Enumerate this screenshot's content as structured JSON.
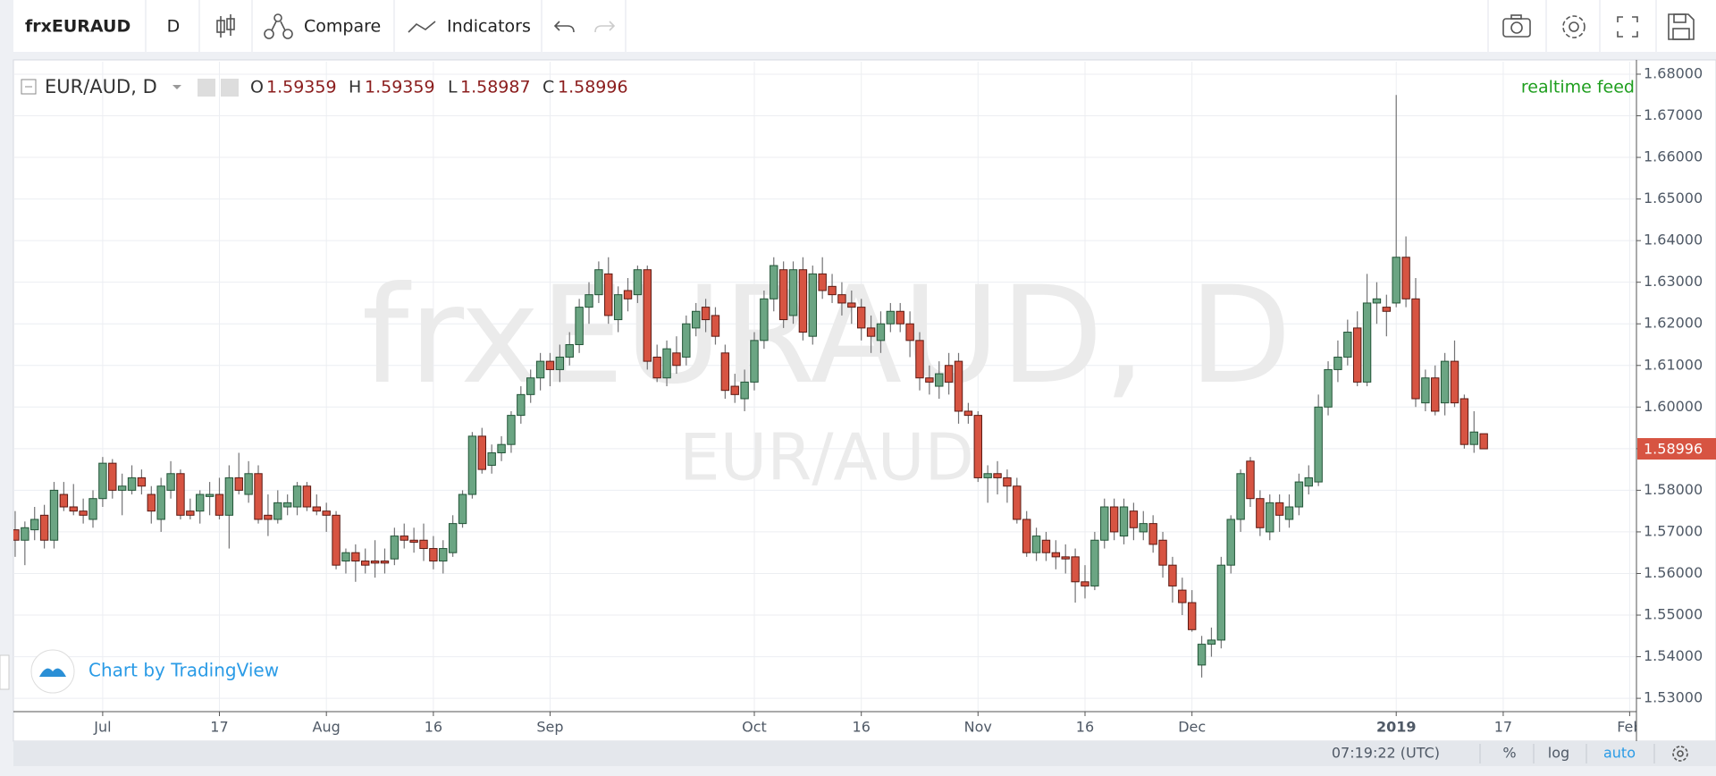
{
  "toolbar": {
    "symbol": "frxEURAUD",
    "interval": "D",
    "compare": "Compare",
    "indicators": "Indicators"
  },
  "legend": {
    "title": "EUR/AUD, D",
    "open_label": "O",
    "high_label": "H",
    "low_label": "L",
    "close_label": "C"
  },
  "watermark": {
    "symbol": "frxEURAUD, D",
    "pair": "EUR/AUD"
  },
  "feed": "realtime feed",
  "branding": "Chart by TradingView",
  "status": {
    "time": "07:19:22 (UTC)",
    "percent": "%",
    "log": "log",
    "auto": "auto"
  },
  "chart_data": {
    "type": "candlestick",
    "grid": true,
    "up_color": "#6ba583",
    "down_color": "#d75442",
    "up_border": "#225437",
    "down_border": "#5b1a13",
    "wick_color": "#737375",
    "ylim": [
      1.5268,
      1.683
    ],
    "yticks": [
      {
        "value": 1.53,
        "label": "1.53000"
      },
      {
        "value": 1.54,
        "label": "1.54000"
      },
      {
        "value": 1.55,
        "label": "1.55000"
      },
      {
        "value": 1.56,
        "label": "1.56000"
      },
      {
        "value": 1.57,
        "label": "1.57000"
      },
      {
        "value": 1.58,
        "label": "1.58000"
      },
      {
        "value": 1.59,
        "label": "1.59000"
      },
      {
        "value": 1.6,
        "label": "1.60000"
      },
      {
        "value": 1.61,
        "label": "1.61000"
      },
      {
        "value": 1.62,
        "label": "1.62000"
      },
      {
        "value": 1.63,
        "label": "1.63000"
      },
      {
        "value": 1.64,
        "label": "1.64000"
      },
      {
        "value": 1.65,
        "label": "1.65000"
      },
      {
        "value": 1.66,
        "label": "1.66000"
      },
      {
        "value": 1.67,
        "label": "1.67000"
      },
      {
        "value": 1.68,
        "label": "1.68000"
      }
    ],
    "xlim": [
      -0.18,
      166.7
    ],
    "xticks": [
      {
        "value": 9,
        "label": "Jul"
      },
      {
        "value": 21,
        "label": "17"
      },
      {
        "value": 32,
        "label": "Aug"
      },
      {
        "value": 43,
        "label": "16"
      },
      {
        "value": 55,
        "label": "Sep"
      },
      {
        "value": 76,
        "label": "Oct"
      },
      {
        "value": 87,
        "label": "16"
      },
      {
        "value": 99,
        "label": "Nov"
      },
      {
        "value": 110,
        "label": "16"
      },
      {
        "value": 121,
        "label": "Dec"
      },
      {
        "value": 142,
        "label": "2019"
      },
      {
        "value": 153,
        "label": "17"
      },
      {
        "value": 166,
        "label": "Feb"
      }
    ],
    "candles": [
      {
        "open": 1.5705,
        "high": 1.575,
        "low": 1.564,
        "close": 1.568
      },
      {
        "open": 1.568,
        "high": 1.5725,
        "low": 1.562,
        "close": 1.571
      },
      {
        "open": 1.5705,
        "high": 1.576,
        "low": 1.568,
        "close": 1.573
      },
      {
        "open": 1.574,
        "high": 1.5765,
        "low": 1.566,
        "close": 1.568
      },
      {
        "open": 1.568,
        "high": 1.582,
        "low": 1.566,
        "close": 1.58
      },
      {
        "open": 1.579,
        "high": 1.582,
        "low": 1.575,
        "close": 1.576
      },
      {
        "open": 1.576,
        "high": 1.5815,
        "low": 1.574,
        "close": 1.575
      },
      {
        "open": 1.575,
        "high": 1.578,
        "low": 1.572,
        "close": 1.574
      },
      {
        "open": 1.573,
        "high": 1.58,
        "low": 1.571,
        "close": 1.578
      },
      {
        "open": 1.578,
        "high": 1.588,
        "low": 1.576,
        "close": 1.5865
      },
      {
        "open": 1.5865,
        "high": 1.5875,
        "low": 1.578,
        "close": 1.58
      },
      {
        "open": 1.58,
        "high": 1.584,
        "low": 1.574,
        "close": 1.581
      },
      {
        "open": 1.58,
        "high": 1.586,
        "low": 1.579,
        "close": 1.583
      },
      {
        "open": 1.583,
        "high": 1.585,
        "low": 1.579,
        "close": 1.581
      },
      {
        "open": 1.579,
        "high": 1.581,
        "low": 1.572,
        "close": 1.575
      },
      {
        "open": 1.573,
        "high": 1.583,
        "low": 1.57,
        "close": 1.581
      },
      {
        "open": 1.58,
        "high": 1.587,
        "low": 1.578,
        "close": 1.584
      },
      {
        "open": 1.584,
        "high": 1.585,
        "low": 1.573,
        "close": 1.574
      },
      {
        "open": 1.575,
        "high": 1.578,
        "low": 1.573,
        "close": 1.574
      },
      {
        "open": 1.575,
        "high": 1.58,
        "low": 1.572,
        "close": 1.579
      },
      {
        "open": 1.5785,
        "high": 1.582,
        "low": 1.574,
        "close": 1.579
      },
      {
        "open": 1.579,
        "high": 1.583,
        "low": 1.573,
        "close": 1.574
      },
      {
        "open": 1.574,
        "high": 1.586,
        "low": 1.566,
        "close": 1.583
      },
      {
        "open": 1.583,
        "high": 1.589,
        "low": 1.579,
        "close": 1.58
      },
      {
        "open": 1.579,
        "high": 1.587,
        "low": 1.577,
        "close": 1.584
      },
      {
        "open": 1.584,
        "high": 1.586,
        "low": 1.572,
        "close": 1.573
      },
      {
        "open": 1.574,
        "high": 1.579,
        "low": 1.569,
        "close": 1.573
      },
      {
        "open": 1.573,
        "high": 1.58,
        "low": 1.572,
        "close": 1.577
      },
      {
        "open": 1.576,
        "high": 1.579,
        "low": 1.574,
        "close": 1.577
      },
      {
        "open": 1.576,
        "high": 1.582,
        "low": 1.574,
        "close": 1.581
      },
      {
        "open": 1.581,
        "high": 1.582,
        "low": 1.575,
        "close": 1.576
      },
      {
        "open": 1.576,
        "high": 1.579,
        "low": 1.574,
        "close": 1.575
      },
      {
        "open": 1.575,
        "high": 1.577,
        "low": 1.57,
        "close": 1.574
      },
      {
        "open": 1.574,
        "high": 1.575,
        "low": 1.561,
        "close": 1.562
      },
      {
        "open": 1.563,
        "high": 1.566,
        "low": 1.56,
        "close": 1.565
      },
      {
        "open": 1.565,
        "high": 1.567,
        "low": 1.558,
        "close": 1.563
      },
      {
        "open": 1.563,
        "high": 1.566,
        "low": 1.56,
        "close": 1.562
      },
      {
        "open": 1.563,
        "high": 1.568,
        "low": 1.559,
        "close": 1.5625
      },
      {
        "open": 1.563,
        "high": 1.566,
        "low": 1.56,
        "close": 1.5625
      },
      {
        "open": 1.5635,
        "high": 1.571,
        "low": 1.562,
        "close": 1.569
      },
      {
        "open": 1.569,
        "high": 1.572,
        "low": 1.566,
        "close": 1.568
      },
      {
        "open": 1.568,
        "high": 1.571,
        "low": 1.565,
        "close": 1.5675
      },
      {
        "open": 1.568,
        "high": 1.572,
        "low": 1.563,
        "close": 1.566
      },
      {
        "open": 1.566,
        "high": 1.569,
        "low": 1.561,
        "close": 1.563
      },
      {
        "open": 1.563,
        "high": 1.568,
        "low": 1.56,
        "close": 1.566
      },
      {
        "open": 1.565,
        "high": 1.574,
        "low": 1.564,
        "close": 1.572
      },
      {
        "open": 1.572,
        "high": 1.58,
        "low": 1.571,
        "close": 1.579
      },
      {
        "open": 1.579,
        "high": 1.594,
        "low": 1.578,
        "close": 1.593
      },
      {
        "open": 1.593,
        "high": 1.595,
        "low": 1.584,
        "close": 1.585
      },
      {
        "open": 1.586,
        "high": 1.591,
        "low": 1.584,
        "close": 1.589
      },
      {
        "open": 1.589,
        "high": 1.593,
        "low": 1.587,
        "close": 1.591
      },
      {
        "open": 1.591,
        "high": 1.599,
        "low": 1.589,
        "close": 1.598
      },
      {
        "open": 1.598,
        "high": 1.605,
        "low": 1.596,
        "close": 1.603
      },
      {
        "open": 1.603,
        "high": 1.609,
        "low": 1.601,
        "close": 1.607
      },
      {
        "open": 1.607,
        "high": 1.613,
        "low": 1.604,
        "close": 1.611
      },
      {
        "open": 1.611,
        "high": 1.613,
        "low": 1.605,
        "close": 1.609
      },
      {
        "open": 1.609,
        "high": 1.615,
        "low": 1.606,
        "close": 1.612
      },
      {
        "open": 1.612,
        "high": 1.618,
        "low": 1.61,
        "close": 1.615
      },
      {
        "open": 1.615,
        "high": 1.626,
        "low": 1.613,
        "close": 1.624
      },
      {
        "open": 1.624,
        "high": 1.63,
        "low": 1.62,
        "close": 1.627
      },
      {
        "open": 1.627,
        "high": 1.635,
        "low": 1.625,
        "close": 1.633
      },
      {
        "open": 1.632,
        "high": 1.636,
        "low": 1.62,
        "close": 1.622
      },
      {
        "open": 1.621,
        "high": 1.629,
        "low": 1.618,
        "close": 1.627
      },
      {
        "open": 1.628,
        "high": 1.631,
        "low": 1.623,
        "close": 1.626
      },
      {
        "open": 1.627,
        "high": 1.634,
        "low": 1.625,
        "close": 1.633
      },
      {
        "open": 1.633,
        "high": 1.634,
        "low": 1.609,
        "close": 1.611
      },
      {
        "open": 1.612,
        "high": 1.615,
        "low": 1.606,
        "close": 1.607
      },
      {
        "open": 1.607,
        "high": 1.616,
        "low": 1.605,
        "close": 1.614
      },
      {
        "open": 1.613,
        "high": 1.617,
        "low": 1.608,
        "close": 1.61
      },
      {
        "open": 1.612,
        "high": 1.622,
        "low": 1.61,
        "close": 1.62
      },
      {
        "open": 1.619,
        "high": 1.625,
        "low": 1.617,
        "close": 1.623
      },
      {
        "open": 1.624,
        "high": 1.626,
        "low": 1.618,
        "close": 1.621
      },
      {
        "open": 1.622,
        "high": 1.624,
        "low": 1.615,
        "close": 1.617
      },
      {
        "open": 1.613,
        "high": 1.615,
        "low": 1.602,
        "close": 1.604
      },
      {
        "open": 1.605,
        "high": 1.608,
        "low": 1.601,
        "close": 1.603
      },
      {
        "open": 1.602,
        "high": 1.609,
        "low": 1.599,
        "close": 1.606
      },
      {
        "open": 1.606,
        "high": 1.618,
        "low": 1.604,
        "close": 1.616
      },
      {
        "open": 1.616,
        "high": 1.628,
        "low": 1.614,
        "close": 1.626
      },
      {
        "open": 1.626,
        "high": 1.636,
        "low": 1.623,
        "close": 1.634
      },
      {
        "open": 1.633,
        "high": 1.635,
        "low": 1.619,
        "close": 1.621
      },
      {
        "open": 1.622,
        "high": 1.635,
        "low": 1.62,
        "close": 1.633
      },
      {
        "open": 1.633,
        "high": 1.636,
        "low": 1.616,
        "close": 1.618
      },
      {
        "open": 1.617,
        "high": 1.634,
        "low": 1.615,
        "close": 1.632
      },
      {
        "open": 1.632,
        "high": 1.636,
        "low": 1.626,
        "close": 1.628
      },
      {
        "open": 1.629,
        "high": 1.632,
        "low": 1.625,
        "close": 1.627
      },
      {
        "open": 1.627,
        "high": 1.63,
        "low": 1.622,
        "close": 1.625
      },
      {
        "open": 1.625,
        "high": 1.628,
        "low": 1.62,
        "close": 1.624
      },
      {
        "open": 1.624,
        "high": 1.626,
        "low": 1.616,
        "close": 1.619
      },
      {
        "open": 1.619,
        "high": 1.622,
        "low": 1.613,
        "close": 1.617
      },
      {
        "open": 1.616,
        "high": 1.623,
        "low": 1.613,
        "close": 1.62
      },
      {
        "open": 1.62,
        "high": 1.625,
        "low": 1.618,
        "close": 1.623
      },
      {
        "open": 1.623,
        "high": 1.625,
        "low": 1.618,
        "close": 1.62
      },
      {
        "open": 1.62,
        "high": 1.623,
        "low": 1.612,
        "close": 1.616
      },
      {
        "open": 1.616,
        "high": 1.618,
        "low": 1.604,
        "close": 1.607
      },
      {
        "open": 1.607,
        "high": 1.61,
        "low": 1.603,
        "close": 1.606
      },
      {
        "open": 1.605,
        "high": 1.611,
        "low": 1.602,
        "close": 1.608
      },
      {
        "open": 1.61,
        "high": 1.613,
        "low": 1.603,
        "close": 1.606
      },
      {
        "open": 1.611,
        "high": 1.613,
        "low": 1.596,
        "close": 1.599
      },
      {
        "open": 1.599,
        "high": 1.601,
        "low": 1.596,
        "close": 1.598
      },
      {
        "open": 1.598,
        "high": 1.599,
        "low": 1.582,
        "close": 1.583
      },
      {
        "open": 1.583,
        "high": 1.586,
        "low": 1.577,
        "close": 1.584
      },
      {
        "open": 1.584,
        "high": 1.587,
        "low": 1.579,
        "close": 1.583
      },
      {
        "open": 1.583,
        "high": 1.585,
        "low": 1.577,
        "close": 1.581
      },
      {
        "open": 1.581,
        "high": 1.583,
        "low": 1.572,
        "close": 1.573
      },
      {
        "open": 1.573,
        "high": 1.575,
        "low": 1.564,
        "close": 1.565
      },
      {
        "open": 1.565,
        "high": 1.571,
        "low": 1.563,
        "close": 1.569
      },
      {
        "open": 1.568,
        "high": 1.57,
        "low": 1.563,
        "close": 1.565
      },
      {
        "open": 1.565,
        "high": 1.568,
        "low": 1.561,
        "close": 1.564
      },
      {
        "open": 1.564,
        "high": 1.567,
        "low": 1.56,
        "close": 1.5635
      },
      {
        "open": 1.564,
        "high": 1.566,
        "low": 1.553,
        "close": 1.558
      },
      {
        "open": 1.558,
        "high": 1.562,
        "low": 1.554,
        "close": 1.557
      },
      {
        "open": 1.557,
        "high": 1.57,
        "low": 1.556,
        "close": 1.568
      },
      {
        "open": 1.568,
        "high": 1.578,
        "low": 1.566,
        "close": 1.576
      },
      {
        "open": 1.576,
        "high": 1.578,
        "low": 1.568,
        "close": 1.57
      },
      {
        "open": 1.569,
        "high": 1.578,
        "low": 1.567,
        "close": 1.576
      },
      {
        "open": 1.575,
        "high": 1.577,
        "low": 1.568,
        "close": 1.571
      },
      {
        "open": 1.57,
        "high": 1.575,
        "low": 1.568,
        "close": 1.572
      },
      {
        "open": 1.572,
        "high": 1.574,
        "low": 1.565,
        "close": 1.567
      },
      {
        "open": 1.568,
        "high": 1.57,
        "low": 1.559,
        "close": 1.562
      },
      {
        "open": 1.562,
        "high": 1.564,
        "low": 1.553,
        "close": 1.557
      },
      {
        "open": 1.556,
        "high": 1.559,
        "low": 1.55,
        "close": 1.553
      },
      {
        "open": 1.553,
        "high": 1.556,
        "low": 1.546,
        "close": 1.5465
      },
      {
        "open": 1.538,
        "high": 1.545,
        "low": 1.535,
        "close": 1.543
      },
      {
        "open": 1.543,
        "high": 1.547,
        "low": 1.54,
        "close": 1.544
      },
      {
        "open": 1.544,
        "high": 1.564,
        "low": 1.542,
        "close": 1.562
      },
      {
        "open": 1.562,
        "high": 1.574,
        "low": 1.56,
        "close": 1.573
      },
      {
        "open": 1.573,
        "high": 1.585,
        "low": 1.57,
        "close": 1.584
      },
      {
        "open": 1.587,
        "high": 1.588,
        "low": 1.576,
        "close": 1.578
      },
      {
        "open": 1.578,
        "high": 1.58,
        "low": 1.569,
        "close": 1.571
      },
      {
        "open": 1.57,
        "high": 1.579,
        "low": 1.568,
        "close": 1.577
      },
      {
        "open": 1.577,
        "high": 1.579,
        "low": 1.57,
        "close": 1.574
      },
      {
        "open": 1.573,
        "high": 1.579,
        "low": 1.571,
        "close": 1.576
      },
      {
        "open": 1.576,
        "high": 1.584,
        "low": 1.574,
        "close": 1.582
      },
      {
        "open": 1.581,
        "high": 1.586,
        "low": 1.579,
        "close": 1.583
      },
      {
        "open": 1.582,
        "high": 1.603,
        "low": 1.581,
        "close": 1.6
      },
      {
        "open": 1.6,
        "high": 1.611,
        "low": 1.598,
        "close": 1.609
      },
      {
        "open": 1.609,
        "high": 1.616,
        "low": 1.606,
        "close": 1.612
      },
      {
        "open": 1.612,
        "high": 1.621,
        "low": 1.61,
        "close": 1.618
      },
      {
        "open": 1.619,
        "high": 1.623,
        "low": 1.605,
        "close": 1.606
      },
      {
        "open": 1.606,
        "high": 1.632,
        "low": 1.605,
        "close": 1.625
      },
      {
        "open": 1.625,
        "high": 1.63,
        "low": 1.62,
        "close": 1.626
      },
      {
        "open": 1.624,
        "high": 1.627,
        "low": 1.617,
        "close": 1.623
      },
      {
        "open": 1.625,
        "high": 1.675,
        "low": 1.624,
        "close": 1.636
      },
      {
        "open": 1.636,
        "high": 1.641,
        "low": 1.624,
        "close": 1.626
      },
      {
        "open": 1.626,
        "high": 1.631,
        "low": 1.6,
        "close": 1.602
      },
      {
        "open": 1.601,
        "high": 1.609,
        "low": 1.599,
        "close": 1.607
      },
      {
        "open": 1.607,
        "high": 1.61,
        "low": 1.598,
        "close": 1.599
      },
      {
        "open": 1.601,
        "high": 1.613,
        "low": 1.598,
        "close": 1.611
      },
      {
        "open": 1.611,
        "high": 1.616,
        "low": 1.6,
        "close": 1.601
      },
      {
        "open": 1.602,
        "high": 1.603,
        "low": 1.59,
        "close": 1.591
      },
      {
        "open": 1.591,
        "high": 1.599,
        "low": 1.589,
        "close": 1.594
      },
      {
        "open": 1.59359,
        "high": 1.59359,
        "low": 1.58987,
        "close": 1.58996
      }
    ]
  }
}
